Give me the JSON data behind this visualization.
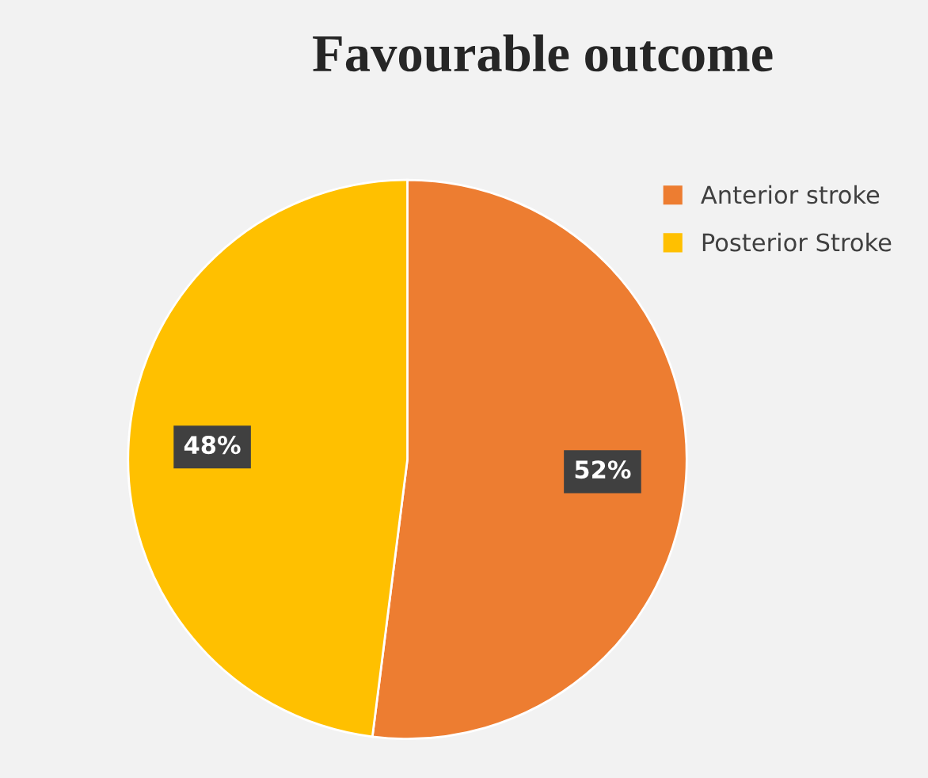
{
  "chart_data": {
    "type": "pie",
    "title": "Favourable outcome",
    "categories": [
      "Anterior stroke",
      "Posterior Stroke"
    ],
    "values": [
      52,
      48
    ],
    "colors": [
      "#ed7d31",
      "#ffc000"
    ],
    "value_labels": [
      "52%",
      "48%"
    ],
    "legend": "top right"
  }
}
